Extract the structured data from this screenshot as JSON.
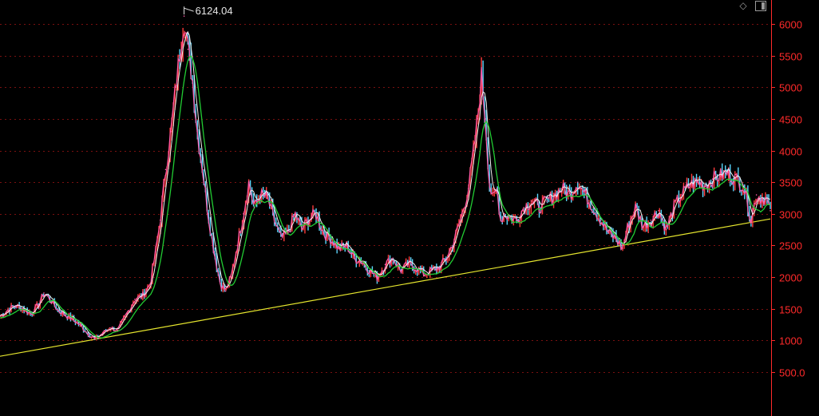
{
  "toolbar": {
    "icons": [
      "diamond-icon",
      "panel-toggle-icon"
    ],
    "diamond_glyph": "◇"
  },
  "colors": {
    "background": "#000000",
    "axis": "#ff2a2a",
    "grid": "#7a1010",
    "price_line": "#ff5aa8",
    "candle_up": "#ff3a3a",
    "candle_down": "#5ad8ff",
    "ma_short": "#f0f0f0",
    "ma_long": "#22cc33",
    "trendline": "#e6e62e"
  },
  "chart_data": {
    "type": "line",
    "title": "",
    "xlabel": "",
    "ylabel": "",
    "y_axis_position": "right",
    "ylim": [
      260,
      6250
    ],
    "yticks": [
      500,
      1000,
      1500,
      2000,
      2500,
      3000,
      3500,
      4000,
      4500,
      5000,
      5500,
      6000
    ],
    "ytick_labels": [
      "500.0",
      "1000",
      "1500",
      "2000",
      "2500",
      "3000",
      "3500",
      "4000",
      "4500",
      "5000",
      "5500",
      "6000"
    ],
    "grid": "horizontal-dashed",
    "peak_annotation": {
      "label": "6124.04",
      "value": 6124.04
    },
    "xlim": [
      0,
      100
    ],
    "series": [
      {
        "values": [
          [
            0,
            1380
          ],
          [
            1,
            1480
          ],
          [
            2,
            1550
          ],
          [
            3,
            1500
          ],
          [
            4,
            1420
          ],
          [
            5,
            1560
          ],
          [
            5.7,
            1750
          ],
          [
            6.5,
            1650
          ],
          [
            7.5,
            1480
          ],
          [
            8.5,
            1400
          ],
          [
            9.5,
            1330
          ],
          [
            10.5,
            1230
          ],
          [
            11.5,
            1100
          ],
          [
            12.3,
            1020
          ],
          [
            13.3,
            1110
          ],
          [
            14.3,
            1200
          ],
          [
            15.3,
            1160
          ],
          [
            16.5,
            1430
          ],
          [
            17.5,
            1650
          ],
          [
            18.5,
            1700
          ],
          [
            19.5,
            1900
          ],
          [
            20.2,
            2400
          ],
          [
            20.8,
            2900
          ],
          [
            21.5,
            3700
          ],
          [
            22.2,
            4300
          ],
          [
            22.8,
            5000
          ],
          [
            23.3,
            5500
          ],
          [
            23.9,
            6124.04
          ],
          [
            24.4,
            5600
          ],
          [
            25,
            5100
          ],
          [
            25.6,
            4300
          ],
          [
            26.3,
            3700
          ],
          [
            27,
            3000
          ],
          [
            27.8,
            2400
          ],
          [
            28.6,
            1900
          ],
          [
            29.3,
            1780
          ],
          [
            30,
            2000
          ],
          [
            30.8,
            2500
          ],
          [
            31.6,
            3000
          ],
          [
            32.3,
            3500
          ],
          [
            33,
            3100
          ],
          [
            33.8,
            3300
          ],
          [
            34.7,
            3250
          ],
          [
            35.6,
            2900
          ],
          [
            36.5,
            2600
          ],
          [
            37.4,
            2700
          ],
          [
            38.3,
            3000
          ],
          [
            39.2,
            2750
          ],
          [
            40,
            2900
          ],
          [
            41,
            3000
          ],
          [
            42,
            2700
          ],
          [
            43,
            2600
          ],
          [
            44,
            2450
          ],
          [
            45,
            2500
          ],
          [
            46,
            2300
          ],
          [
            47,
            2250
          ],
          [
            48,
            2100
          ],
          [
            49,
            2000
          ],
          [
            50,
            2200
          ],
          [
            51,
            2300
          ],
          [
            52,
            2100
          ],
          [
            53,
            2200
          ],
          [
            54,
            2150
          ],
          [
            55,
            2050
          ],
          [
            56,
            2100
          ],
          [
            57,
            2150
          ],
          [
            58,
            2300
          ],
          [
            59,
            2600
          ],
          [
            60,
            3000
          ],
          [
            60.8,
            3400
          ],
          [
            61.5,
            4000
          ],
          [
            62,
            4500
          ],
          [
            62.5,
            5178
          ],
          [
            63,
            4500
          ],
          [
            63.5,
            3500
          ],
          [
            64,
            3200
          ],
          [
            64.5,
            3400
          ],
          [
            65,
            2900
          ],
          [
            65.5,
            3000
          ],
          [
            66,
            2950
          ],
          [
            67,
            2900
          ],
          [
            68,
            3100
          ],
          [
            69,
            3200
          ],
          [
            70,
            3100
          ],
          [
            71,
            3200
          ],
          [
            72,
            3300
          ],
          [
            73,
            3400
          ],
          [
            74,
            3300
          ],
          [
            75,
            3500
          ],
          [
            76,
            3300
          ],
          [
            77,
            3100
          ],
          [
            78,
            2900
          ],
          [
            79,
            2700
          ],
          [
            80,
            2600
          ],
          [
            80.8,
            2450
          ],
          [
            81.5,
            2800
          ],
          [
            82.5,
            3100
          ],
          [
            83.5,
            2800
          ],
          [
            84.5,
            2900
          ],
          [
            85.5,
            3050
          ],
          [
            86.5,
            2750
          ],
          [
            87.5,
            3100
          ],
          [
            88.5,
            3300
          ],
          [
            89.5,
            3450
          ],
          [
            90.5,
            3500
          ],
          [
            91.5,
            3450
          ],
          [
            92.5,
            3550
          ],
          [
            93.5,
            3600
          ],
          [
            94.5,
            3650
          ],
          [
            95.5,
            3550
          ],
          [
            96.5,
            3450
          ],
          [
            97,
            3200
          ],
          [
            97.5,
            2900
          ],
          [
            98.2,
            3300
          ],
          [
            98.8,
            3250
          ],
          [
            99.4,
            3250
          ],
          [
            100,
            3050
          ]
        ]
      }
    ],
    "trendline": {
      "from": [
        0,
        750
      ],
      "to": [
        100,
        2920
      ]
    }
  }
}
